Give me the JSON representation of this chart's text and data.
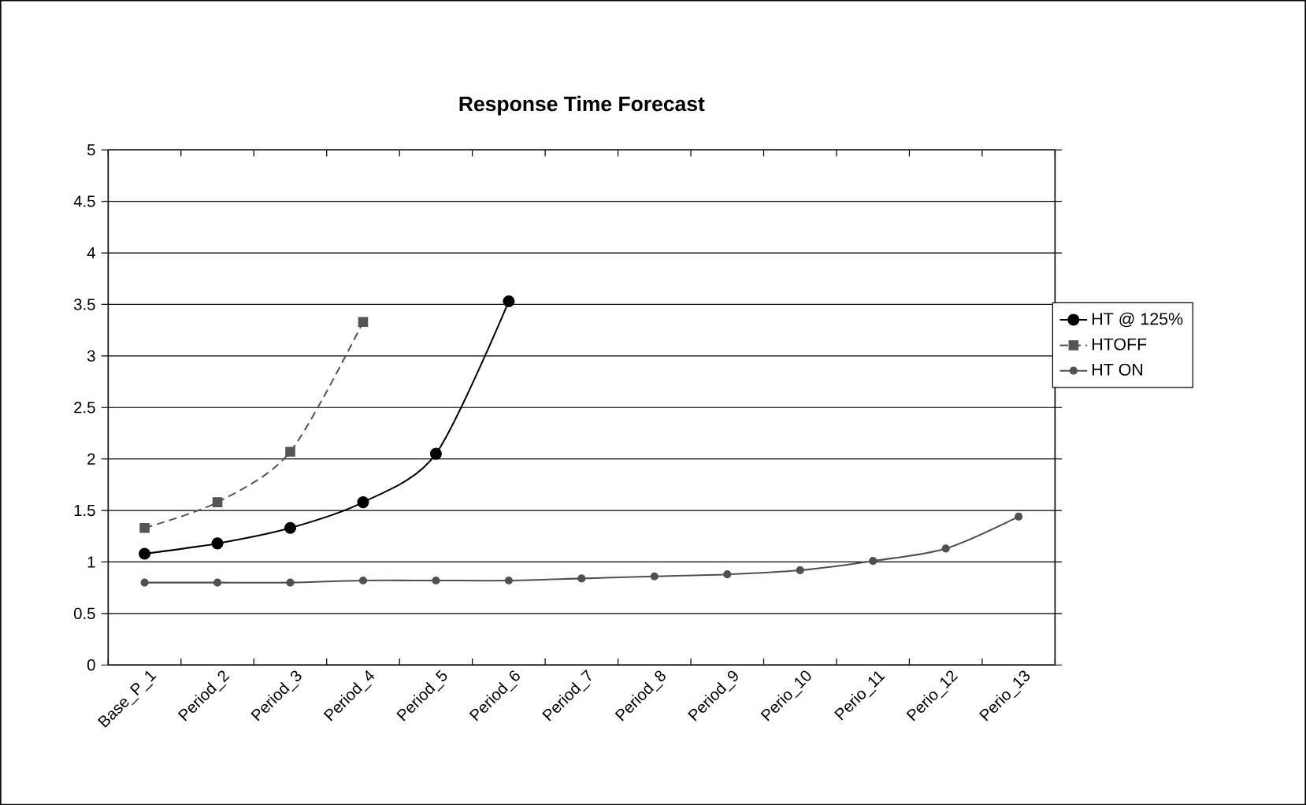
{
  "chart_data": {
    "type": "line",
    "title": "Response Time Forecast",
    "categories": [
      "Base_P_1",
      "Period_2",
      "Period_3",
      "Period_4",
      "Period_5",
      "Period_6",
      "Period_7",
      "Period_8",
      "Period_9",
      "Perio_10",
      "Perio_11",
      "Perio_12",
      "Perio_13"
    ],
    "series": [
      {
        "name": "HT @ 125%",
        "color": "#000000",
        "marker": "circle",
        "line_style": "solid",
        "values": [
          1.08,
          1.18,
          1.33,
          1.58,
          2.05,
          3.53,
          null,
          null,
          null,
          null,
          null,
          null,
          null
        ]
      },
      {
        "name": "HTOFF",
        "color": "#555555",
        "marker": "square",
        "line_style": "dashed",
        "values": [
          1.33,
          1.58,
          2.07,
          3.33,
          null,
          null,
          null,
          null,
          null,
          null,
          null,
          null,
          null
        ]
      },
      {
        "name": "HT ON",
        "color": "#505050",
        "marker": "circle",
        "line_style": "solid",
        "values": [
          0.8,
          0.8,
          0.8,
          0.82,
          0.82,
          0.82,
          0.84,
          0.86,
          0.88,
          0.92,
          1.01,
          1.13,
          1.44
        ]
      }
    ],
    "ylim": [
      0,
      5
    ],
    "yticks": [
      0,
      0.5,
      1,
      1.5,
      2,
      2.5,
      3,
      3.5,
      4,
      4.5,
      5
    ],
    "grid": "y",
    "legend": "right"
  }
}
